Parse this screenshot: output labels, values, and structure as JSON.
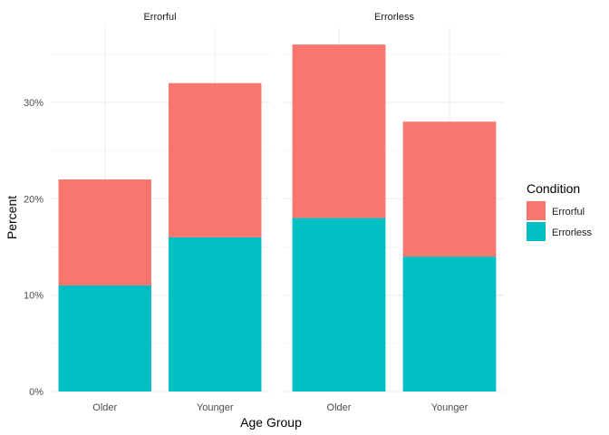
{
  "chart_data": {
    "type": "bar",
    "stacked": true,
    "facets": [
      {
        "title": "Errorful",
        "categories": [
          "Older",
          "Younger"
        ],
        "series": [
          {
            "name": "Errorless",
            "values": [
              11,
              16
            ]
          },
          {
            "name": "Errorful",
            "values": [
              11,
              16
            ]
          }
        ]
      },
      {
        "title": "Errorless",
        "categories": [
          "Older",
          "Younger"
        ],
        "series": [
          {
            "name": "Errorless",
            "values": [
              18,
              14
            ]
          },
          {
            "name": "Errorful",
            "values": [
              18,
              14
            ]
          }
        ]
      }
    ],
    "xlabel": "Age Group",
    "ylabel": "Percent",
    "ylim": [
      0,
      37.8
    ],
    "yticks": [
      0,
      10,
      20,
      30
    ],
    "ytick_labels": [
      "0%",
      "10%",
      "20%",
      "30%"
    ],
    "grid": true,
    "legend": {
      "title": "Condition",
      "position": "right",
      "entries": [
        {
          "name": "Errorful",
          "color": "#F8766D"
        },
        {
          "name": "Errorless",
          "color": "#00BFC4"
        }
      ]
    },
    "colors": {
      "Errorful": "#F8766D",
      "Errorless": "#00BFC4"
    }
  }
}
